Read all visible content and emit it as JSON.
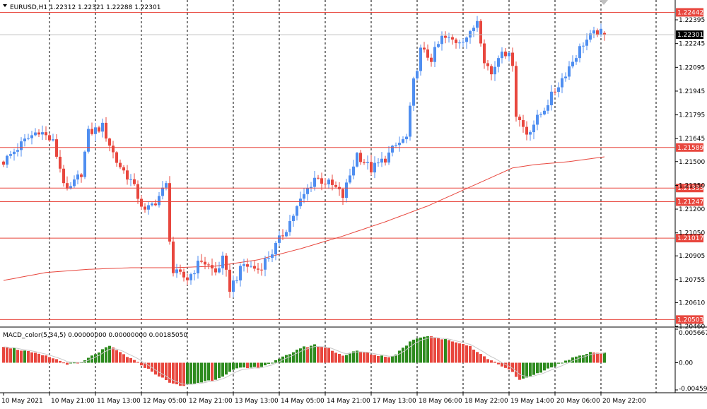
{
  "symbol_header": "EURUSD,H1  1.22312 1.22321 1.22288 1.22301",
  "colors": {
    "bull": "#4f8ef0",
    "bear": "#e8473e",
    "ma": "#e8473e",
    "level": "#e8473e",
    "macd_up": "#2e8b1f",
    "macd_down": "#e8473e",
    "signal": "#c8c8c8",
    "grid": "#000000",
    "current_price_bg": "#000000"
  },
  "chart_data": [
    {
      "type": "candlestick",
      "title": "EURUSD,H1",
      "ohlc": {
        "open": 1.22312,
        "high": 1.22321,
        "low": 1.22288,
        "close": 1.22301
      },
      "ylim": [
        1.2046,
        1.2252
      ],
      "y_ticks": [
        "1.22395",
        "1.22245",
        "1.22095",
        "1.21945",
        "1.21795",
        "1.21645",
        "1.21500",
        "1.21350",
        "1.21200",
        "1.21050",
        "1.20905",
        "1.20755",
        "1.20610",
        "1.20460"
      ],
      "x_ticks": [
        "10 May 2021",
        "10 May 21:00",
        "11 May 13:00",
        "12 May 05:00",
        "12 May 21:00",
        "13 May 13:00",
        "14 May 05:00",
        "14 May 21:00",
        "17 May 13:00",
        "18 May 06:00",
        "18 May 22:00",
        "19 May 14:00",
        "20 May 06:00",
        "20 May 22:00"
      ],
      "horizontal_levels": [
        "1.22442",
        "1.21589",
        "1.21333",
        "1.21247",
        "1.21017",
        "1.20503"
      ],
      "current_price": "1.22301",
      "close_path": [
        [
          0,
          1.215
        ],
        [
          6,
          1.2163
        ],
        [
          10,
          1.217
        ],
        [
          14,
          1.2162
        ],
        [
          18,
          1.213
        ],
        [
          22,
          1.2143
        ],
        [
          24,
          1.2168
        ],
        [
          28,
          1.2172
        ],
        [
          32,
          1.215
        ],
        [
          36,
          1.2138
        ],
        [
          40,
          1.2118
        ],
        [
          43,
          1.2125
        ],
        [
          46,
          1.2135
        ],
        [
          47,
          1.2102
        ],
        [
          48,
          1.208
        ],
        [
          52,
          1.2076
        ],
        [
          56,
          1.2088
        ],
        [
          60,
          1.208
        ],
        [
          62,
          1.2088
        ],
        [
          64,
          1.207
        ],
        [
          68,
          1.2085
        ],
        [
          72,
          1.2082
        ],
        [
          76,
          1.2093
        ],
        [
          80,
          1.2108
        ],
        [
          84,
          1.2125
        ],
        [
          88,
          1.214
        ],
        [
          92,
          1.2136
        ],
        [
          94,
          1.2133
        ],
        [
          96,
          1.2128
        ],
        [
          100,
          1.2155
        ],
        [
          104,
          1.2145
        ],
        [
          108,
          1.2152
        ],
        [
          111,
          1.216
        ],
        [
          114,
          1.2165
        ],
        [
          116,
          1.22
        ],
        [
          118,
          1.222
        ],
        [
          121,
          1.2215
        ],
        [
          124,
          1.2228
        ],
        [
          128,
          1.2226
        ],
        [
          132,
          1.223
        ],
        [
          134,
          1.224
        ],
        [
          136,
          1.2215
        ],
        [
          138,
          1.2205
        ],
        [
          141,
          1.2222
        ],
        [
          144,
          1.2213
        ],
        [
          145,
          1.218
        ],
        [
          148,
          1.2168
        ],
        [
          152,
          1.218
        ],
        [
          156,
          1.2195
        ],
        [
          160,
          1.221
        ],
        [
          164,
          1.2225
        ],
        [
          168,
          1.2232
        ],
        [
          170,
          1.223
        ]
      ],
      "ma_path": [
        [
          0,
          1.2075
        ],
        [
          12,
          1.208
        ],
        [
          24,
          1.2082
        ],
        [
          36,
          1.2083
        ],
        [
          48,
          1.2083
        ],
        [
          60,
          1.2084
        ],
        [
          72,
          1.2088
        ],
        [
          84,
          1.2095
        ],
        [
          96,
          1.2103
        ],
        [
          108,
          1.2112
        ],
        [
          120,
          1.2122
        ],
        [
          132,
          1.2134
        ],
        [
          144,
          1.2146
        ],
        [
          150,
          1.2148
        ],
        [
          160,
          1.215
        ],
        [
          170,
          1.2153
        ]
      ]
    },
    {
      "type": "bar",
      "title": "MACD_color(5,34,5) 0.00000000 0.00000000 0.00185050",
      "ylim": [
        -0.004594,
        0.005667
      ],
      "y_ticks": [
        "0.0056679",
        "0.00",
        "-0.0045945"
      ],
      "signal_line": true,
      "values_path": [
        [
          0,
          0.0028
        ],
        [
          6,
          0.002
        ],
        [
          14,
          0.0008
        ],
        [
          18,
          -0.0002
        ],
        [
          22,
          0.0
        ],
        [
          26,
          0.0015
        ],
        [
          30,
          0.0028
        ],
        [
          34,
          0.0014
        ],
        [
          38,
          0.0
        ],
        [
          42,
          -0.0015
        ],
        [
          46,
          -0.003
        ],
        [
          50,
          -0.004
        ],
        [
          54,
          -0.0035
        ],
        [
          60,
          -0.0028
        ],
        [
          66,
          -0.001
        ],
        [
          72,
          -0.0008
        ],
        [
          76,
          0.0
        ],
        [
          80,
          0.0012
        ],
        [
          84,
          0.0025
        ],
        [
          88,
          0.003
        ],
        [
          92,
          0.0024
        ],
        [
          96,
          0.0012
        ],
        [
          100,
          0.002
        ],
        [
          106,
          0.0012
        ],
        [
          110,
          0.001
        ],
        [
          116,
          0.004
        ],
        [
          120,
          0.0046
        ],
        [
          124,
          0.004
        ],
        [
          128,
          0.0035
        ],
        [
          132,
          0.0028
        ],
        [
          136,
          0.001
        ],
        [
          140,
          -0.0002
        ],
        [
          144,
          -0.0015
        ],
        [
          146,
          -0.003
        ],
        [
          150,
          -0.0022
        ],
        [
          154,
          -0.001
        ],
        [
          158,
          0.0
        ],
        [
          162,
          0.001
        ],
        [
          166,
          0.0018
        ],
        [
          170,
          0.0016
        ]
      ]
    }
  ]
}
